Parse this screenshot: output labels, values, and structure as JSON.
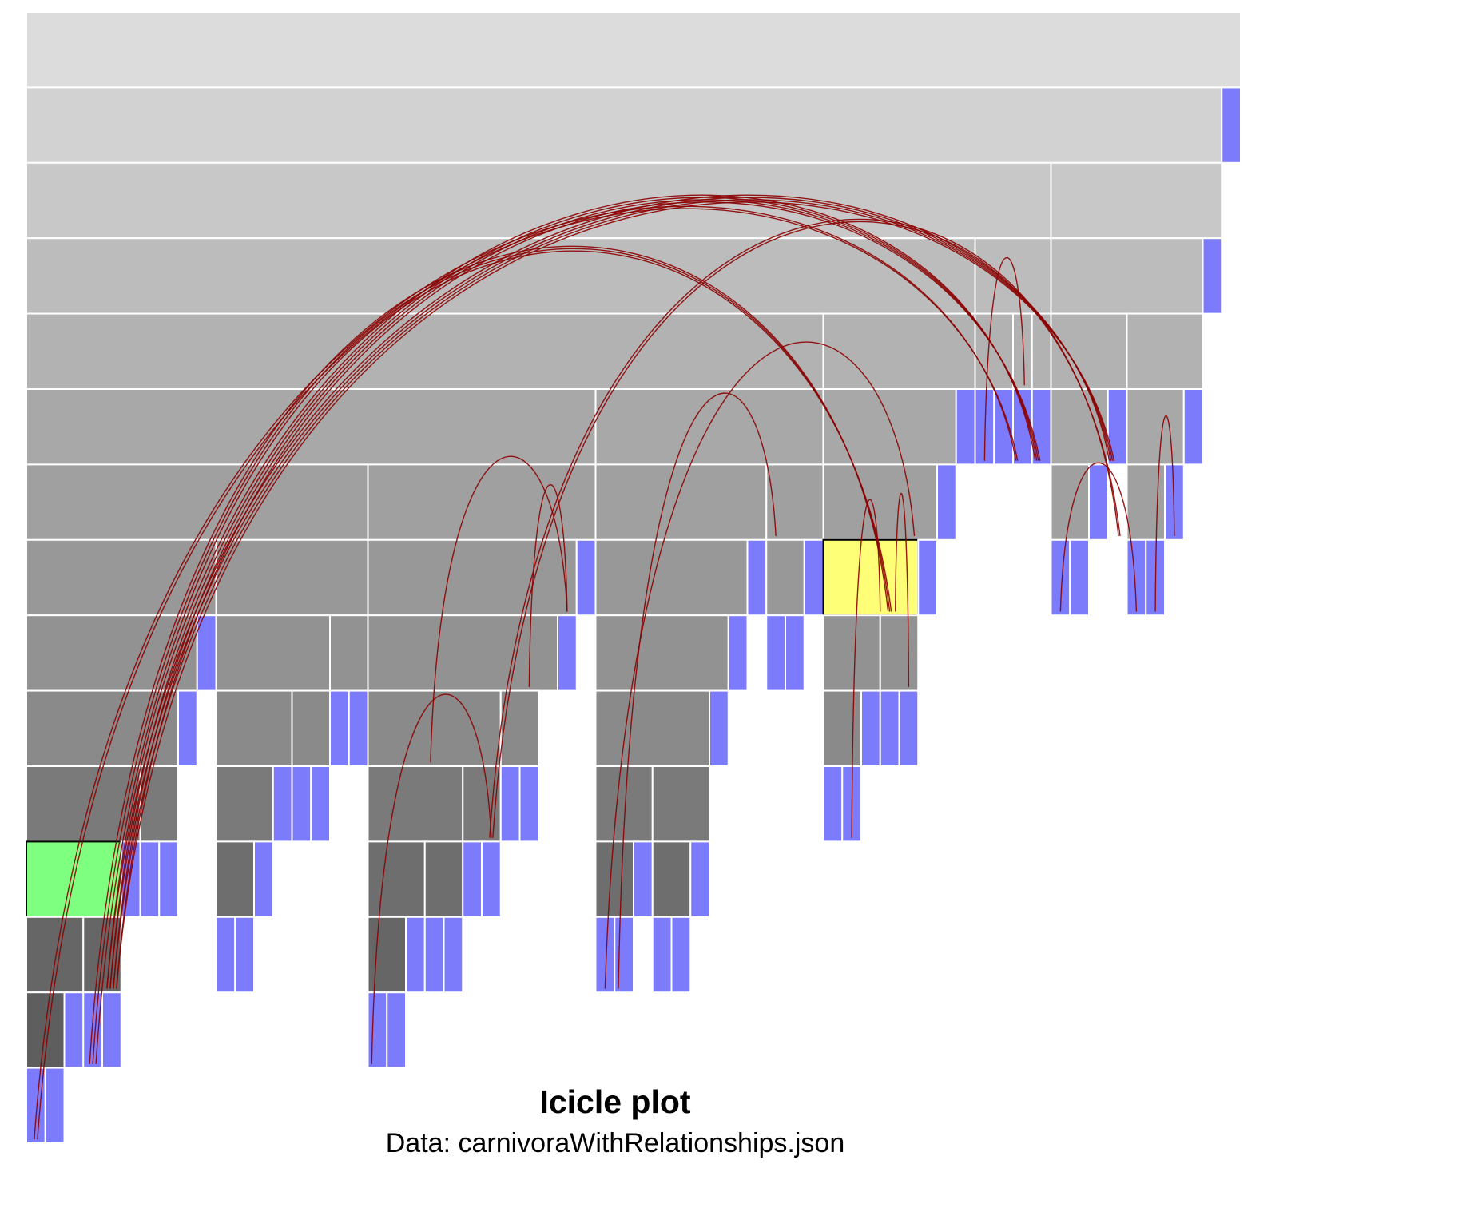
{
  "caption": {
    "title": "Icicle plot",
    "subtitle": "Data: carnivoraWithRelationships.json"
  },
  "colors": {
    "background": "#ffffff",
    "node_stroke": "#ffffff",
    "leaf": "#7b7bfc",
    "source_highlight": "#7fff7f",
    "target_highlight": "#ffff77",
    "edge": "#8b0000",
    "level_fill": [
      "#dcdcdc",
      "#d2d2d2",
      "#c8c8c8",
      "#bcbcbc",
      "#b2b2b2",
      "#a8a8a8",
      "#a0a0a0",
      "#989898",
      "#929292",
      "#8a8a8a",
      "#7a7a7a",
      "#6e6e6e",
      "#666666",
      "#5e5e5e",
      "#555555"
    ]
  },
  "chart_data": {
    "type": "icicle",
    "levels": 15,
    "columns": 64,
    "note_units": "start and span are counted in leaf columns; level is tree depth (0 = root)",
    "nodes": [
      {
        "level": 0,
        "start": 0,
        "span": 64
      },
      {
        "level": 1,
        "start": 0,
        "span": 63
      },
      {
        "level": 1,
        "start": 63,
        "span": 1,
        "leaf": true
      },
      {
        "level": 2,
        "start": 0,
        "span": 54
      },
      {
        "level": 2,
        "start": 54,
        "span": 9
      },
      {
        "level": 3,
        "start": 0,
        "span": 50
      },
      {
        "level": 3,
        "start": 50,
        "span": 4
      },
      {
        "level": 3,
        "start": 54,
        "span": 8
      },
      {
        "level": 3,
        "start": 62,
        "span": 1,
        "leaf": true
      },
      {
        "level": 4,
        "start": 0,
        "span": 42
      },
      {
        "level": 4,
        "start": 42,
        "span": 8
      },
      {
        "level": 4,
        "start": 50,
        "span": 2
      },
      {
        "level": 4,
        "start": 52,
        "span": 1
      },
      {
        "level": 4,
        "start": 53,
        "span": 1
      },
      {
        "level": 4,
        "start": 54,
        "span": 4
      },
      {
        "level": 4,
        "start": 58,
        "span": 4
      },
      {
        "level": 5,
        "start": 0,
        "span": 30
      },
      {
        "level": 5,
        "start": 30,
        "span": 12
      },
      {
        "level": 5,
        "start": 42,
        "span": 7
      },
      {
        "level": 5,
        "start": 49,
        "span": 1,
        "leaf": true
      },
      {
        "level": 5,
        "start": 50,
        "span": 1,
        "leaf": true
      },
      {
        "level": 5,
        "start": 51,
        "span": 1,
        "leaf": true
      },
      {
        "level": 5,
        "start": 52,
        "span": 1,
        "leaf": true
      },
      {
        "level": 5,
        "start": 53,
        "span": 1,
        "leaf": true
      },
      {
        "level": 5,
        "start": 54,
        "span": 3
      },
      {
        "level": 5,
        "start": 57,
        "span": 1,
        "leaf": true
      },
      {
        "level": 5,
        "start": 58,
        "span": 3
      },
      {
        "level": 5,
        "start": 61,
        "span": 1,
        "leaf": true
      },
      {
        "level": 6,
        "start": 0,
        "span": 18
      },
      {
        "level": 6,
        "start": 18,
        "span": 12
      },
      {
        "level": 6,
        "start": 30,
        "span": 9
      },
      {
        "level": 6,
        "start": 39,
        "span": 3
      },
      {
        "level": 6,
        "start": 42,
        "span": 6
      },
      {
        "level": 6,
        "start": 48,
        "span": 1,
        "leaf": true
      },
      {
        "level": 6,
        "start": 54,
        "span": 2
      },
      {
        "level": 6,
        "start": 56,
        "span": 1,
        "leaf": true
      },
      {
        "level": 6,
        "start": 58,
        "span": 2
      },
      {
        "level": 6,
        "start": 60,
        "span": 1,
        "leaf": true
      },
      {
        "level": 7,
        "start": 0,
        "span": 10
      },
      {
        "level": 7,
        "start": 10,
        "span": 8
      },
      {
        "level": 7,
        "start": 18,
        "span": 11
      },
      {
        "level": 7,
        "start": 29,
        "span": 1,
        "leaf": true
      },
      {
        "level": 7,
        "start": 30,
        "span": 8
      },
      {
        "level": 7,
        "start": 38,
        "span": 1,
        "leaf": true
      },
      {
        "level": 7,
        "start": 39,
        "span": 2
      },
      {
        "level": 7,
        "start": 41,
        "span": 1,
        "leaf": true
      },
      {
        "level": 7,
        "start": 42,
        "span": 5,
        "highlight": "target"
      },
      {
        "level": 7,
        "start": 47,
        "span": 1,
        "leaf": true
      },
      {
        "level": 7,
        "start": 54,
        "span": 1,
        "leaf": true
      },
      {
        "level": 7,
        "start": 55,
        "span": 1,
        "leaf": true
      },
      {
        "level": 7,
        "start": 58,
        "span": 1,
        "leaf": true
      },
      {
        "level": 7,
        "start": 59,
        "span": 1,
        "leaf": true
      },
      {
        "level": 8,
        "start": 0,
        "span": 9
      },
      {
        "level": 8,
        "start": 9,
        "span": 1,
        "leaf": true
      },
      {
        "level": 8,
        "start": 10,
        "span": 6
      },
      {
        "level": 8,
        "start": 16,
        "span": 2
      },
      {
        "level": 8,
        "start": 18,
        "span": 10
      },
      {
        "level": 8,
        "start": 28,
        "span": 1,
        "leaf": true
      },
      {
        "level": 8,
        "start": 30,
        "span": 7
      },
      {
        "level": 8,
        "start": 37,
        "span": 1,
        "leaf": true
      },
      {
        "level": 8,
        "start": 39,
        "span": 1,
        "leaf": true
      },
      {
        "level": 8,
        "start": 40,
        "span": 1,
        "leaf": true
      },
      {
        "level": 8,
        "start": 42,
        "span": 3
      },
      {
        "level": 8,
        "start": 45,
        "span": 2
      },
      {
        "level": 9,
        "start": 0,
        "span": 8
      },
      {
        "level": 9,
        "start": 8,
        "span": 1,
        "leaf": true
      },
      {
        "level": 9,
        "start": 10,
        "span": 4
      },
      {
        "level": 9,
        "start": 14,
        "span": 2
      },
      {
        "level": 9,
        "start": 16,
        "span": 1,
        "leaf": true
      },
      {
        "level": 9,
        "start": 17,
        "span": 1,
        "leaf": true
      },
      {
        "level": 9,
        "start": 18,
        "span": 7
      },
      {
        "level": 9,
        "start": 25,
        "span": 2
      },
      {
        "level": 9,
        "start": 30,
        "span": 6
      },
      {
        "level": 9,
        "start": 36,
        "span": 1,
        "leaf": true
      },
      {
        "level": 9,
        "start": 42,
        "span": 2
      },
      {
        "level": 9,
        "start": 44,
        "span": 1,
        "leaf": true
      },
      {
        "level": 9,
        "start": 45,
        "span": 1,
        "leaf": true
      },
      {
        "level": 9,
        "start": 46,
        "span": 1,
        "leaf": true
      },
      {
        "level": 10,
        "start": 0,
        "span": 6
      },
      {
        "level": 10,
        "start": 6,
        "span": 2
      },
      {
        "level": 10,
        "start": 10,
        "span": 3
      },
      {
        "level": 10,
        "start": 13,
        "span": 1,
        "leaf": true
      },
      {
        "level": 10,
        "start": 14,
        "span": 1,
        "leaf": true
      },
      {
        "level": 10,
        "start": 15,
        "span": 1,
        "leaf": true
      },
      {
        "level": 10,
        "start": 18,
        "span": 5
      },
      {
        "level": 10,
        "start": 23,
        "span": 2
      },
      {
        "level": 10,
        "start": 25,
        "span": 1,
        "leaf": true
      },
      {
        "level": 10,
        "start": 26,
        "span": 1,
        "leaf": true
      },
      {
        "level": 10,
        "start": 30,
        "span": 3
      },
      {
        "level": 10,
        "start": 33,
        "span": 3
      },
      {
        "level": 10,
        "start": 42,
        "span": 1,
        "leaf": true
      },
      {
        "level": 10,
        "start": 43,
        "span": 1,
        "leaf": true
      },
      {
        "level": 11,
        "start": 0,
        "span": 5,
        "highlight": "source"
      },
      {
        "level": 11,
        "start": 5,
        "span": 1,
        "leaf": true
      },
      {
        "level": 11,
        "start": 6,
        "span": 1,
        "leaf": true
      },
      {
        "level": 11,
        "start": 7,
        "span": 1,
        "leaf": true
      },
      {
        "level": 11,
        "start": 10,
        "span": 2
      },
      {
        "level": 11,
        "start": 12,
        "span": 1,
        "leaf": true
      },
      {
        "level": 11,
        "start": 18,
        "span": 3
      },
      {
        "level": 11,
        "start": 21,
        "span": 2
      },
      {
        "level": 11,
        "start": 23,
        "span": 1,
        "leaf": true
      },
      {
        "level": 11,
        "start": 24,
        "span": 1,
        "leaf": true
      },
      {
        "level": 11,
        "start": 30,
        "span": 2
      },
      {
        "level": 11,
        "start": 32,
        "span": 1,
        "leaf": true
      },
      {
        "level": 11,
        "start": 33,
        "span": 2
      },
      {
        "level": 11,
        "start": 35,
        "span": 1,
        "leaf": true
      },
      {
        "level": 12,
        "start": 0,
        "span": 3
      },
      {
        "level": 12,
        "start": 3,
        "span": 2
      },
      {
        "level": 12,
        "start": 10,
        "span": 1,
        "leaf": true
      },
      {
        "level": 12,
        "start": 11,
        "span": 1,
        "leaf": true
      },
      {
        "level": 12,
        "start": 18,
        "span": 2
      },
      {
        "level": 12,
        "start": 20,
        "span": 1,
        "leaf": true
      },
      {
        "level": 12,
        "start": 21,
        "span": 1,
        "leaf": true
      },
      {
        "level": 12,
        "start": 22,
        "span": 1,
        "leaf": true
      },
      {
        "level": 12,
        "start": 30,
        "span": 1,
        "leaf": true
      },
      {
        "level": 12,
        "start": 31,
        "span": 1,
        "leaf": true
      },
      {
        "level": 12,
        "start": 33,
        "span": 1,
        "leaf": true
      },
      {
        "level": 12,
        "start": 34,
        "span": 1,
        "leaf": true
      },
      {
        "level": 13,
        "start": 0,
        "span": 2
      },
      {
        "level": 13,
        "start": 2,
        "span": 1,
        "leaf": true
      },
      {
        "level": 13,
        "start": 3,
        "span": 1,
        "leaf": true
      },
      {
        "level": 13,
        "start": 4,
        "span": 1,
        "leaf": true
      },
      {
        "level": 13,
        "start": 18,
        "span": 1,
        "leaf": true
      },
      {
        "level": 13,
        "start": 19,
        "span": 1,
        "leaf": true
      },
      {
        "level": 14,
        "start": 0,
        "span": 1,
        "leaf": true
      },
      {
        "level": 14,
        "start": 1,
        "span": 1,
        "leaf": true
      }
    ],
    "links": [
      {
        "from": [
          4.5,
          12
        ],
        "to": [
          57.2,
          5
        ],
        "bundle": 4
      },
      {
        "from": [
          4.5,
          12
        ],
        "to": [
          53.3,
          5
        ],
        "bundle": 4
      },
      {
        "from": [
          3.5,
          13
        ],
        "to": [
          45.5,
          7
        ],
        "bundle": 3
      },
      {
        "from": [
          0.5,
          14
        ],
        "to": [
          52.2,
          5
        ],
        "bundle": 2
      },
      {
        "from": [
          21.3,
          9
        ],
        "to": [
          28.5,
          7
        ],
        "bundle": 1
      },
      {
        "from": [
          24.5,
          10
        ],
        "to": [
          57.6,
          6
        ],
        "bundle": 2
      },
      {
        "from": [
          30.5,
          12
        ],
        "to": [
          46.8,
          6
        ],
        "bundle": 1
      },
      {
        "from": [
          31.2,
          12
        ],
        "to": [
          39.5,
          6
        ],
        "bundle": 1
      },
      {
        "from": [
          18.2,
          13
        ],
        "to": [
          24.5,
          10
        ],
        "bundle": 1
      },
      {
        "from": [
          26.5,
          8
        ],
        "to": [
          28.5,
          7
        ],
        "bundle": 1
      },
      {
        "from": [
          43.5,
          10
        ],
        "to": [
          45.0,
          7
        ],
        "bundle": 1
      },
      {
        "from": [
          46.5,
          8
        ],
        "to": [
          45.8,
          7
        ],
        "bundle": 1
      },
      {
        "from": [
          54.5,
          7
        ],
        "to": [
          58.5,
          7
        ],
        "bundle": 1
      },
      {
        "from": [
          59.5,
          7
        ],
        "to": [
          60.5,
          6
        ],
        "bundle": 1
      },
      {
        "from": [
          50.5,
          5
        ],
        "to": [
          52.6,
          4
        ],
        "bundle": 1
      }
    ]
  }
}
